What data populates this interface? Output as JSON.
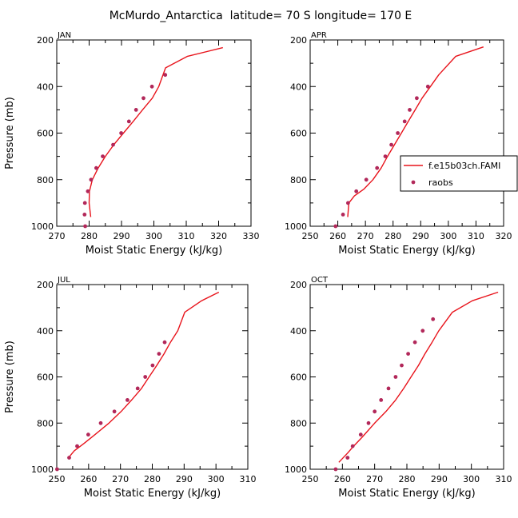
{
  "figure_title": "McMurdo_Antarctica  latitude= 70 S longitude= 170 E",
  "legend": {
    "model_label": "f.e15b03ch.FAMI",
    "obs_label": "raobs",
    "placement": "right, between APR and OCT panels"
  },
  "colors": {
    "model_line": "#e8141c",
    "obs_marker": "#b2285a",
    "axis": "#000000"
  },
  "chart_data": [
    {
      "type": "line",
      "panel": "JAN",
      "xlabel": "Moist Static Energy (kJ/kg)",
      "ylabel": "Pressure (mb)",
      "xlim": [
        270,
        330
      ],
      "ylim": [
        1000,
        200
      ],
      "xticks": [
        270,
        280,
        290,
        300,
        310,
        320,
        330
      ],
      "yticks": [
        200,
        400,
        600,
        800,
        1000
      ],
      "series": [
        {
          "name": "f.e15b03ch.FAMI",
          "kind": "line",
          "x": [
            280.5,
            280.0,
            280.1,
            281.0,
            282.8,
            285.0,
            287.6,
            290.6,
            293.6,
            296.5,
            299.5,
            301.5,
            303.6,
            310.4,
            321.3
          ],
          "y": [
            960,
            900,
            850,
            800,
            750,
            700,
            650,
            600,
            550,
            500,
            450,
            400,
            320,
            270,
            233
          ]
        },
        {
          "name": "raobs",
          "kind": "scatter",
          "x": [
            278.8,
            278.6,
            278.7,
            279.6,
            280.6,
            282.2,
            284.2,
            287.4,
            289.9,
            292.3,
            294.5,
            296.8,
            299.4,
            303.5
          ],
          "y": [
            1000,
            950,
            900,
            850,
            800,
            750,
            700,
            650,
            600,
            550,
            500,
            450,
            400,
            350
          ]
        }
      ]
    },
    {
      "type": "line",
      "panel": "APR",
      "xlabel": "Moist Static Energy (kJ/kg)",
      "ylabel": "Pressure (mb)",
      "xlim": [
        250,
        320
      ],
      "ylim": [
        1000,
        200
      ],
      "xticks": [
        250,
        260,
        270,
        280,
        290,
        300,
        310,
        320
      ],
      "yticks": [
        200,
        400,
        600,
        800,
        1000
      ],
      "series": [
        {
          "name": "f.e15b03ch.FAMI",
          "kind": "line",
          "x": [
            263.6,
            264.0,
            266.0,
            269.5,
            272.7,
            275.7,
            278.0,
            280.5,
            283.0,
            285.5,
            288.0,
            290.5,
            293.5,
            296.5,
            302.7,
            312.7
          ],
          "y": [
            960,
            900,
            870,
            840,
            800,
            750,
            700,
            650,
            600,
            550,
            500,
            450,
            400,
            350,
            270,
            230
          ]
        },
        {
          "name": "raobs",
          "kind": "scatter",
          "x": [
            259.2,
            261.9,
            263.7,
            266.7,
            270.3,
            274.2,
            277.2,
            279.4,
            281.7,
            284.2,
            286.0,
            288.6,
            292.6
          ],
          "y": [
            1000,
            950,
            900,
            850,
            800,
            750,
            700,
            650,
            600,
            550,
            500,
            450,
            400
          ]
        }
      ]
    },
    {
      "type": "line",
      "panel": "JUL",
      "xlabel": "Moist Static Energy (kJ/kg)",
      "ylabel": "Pressure (mb)",
      "xlim": [
        250,
        310
      ],
      "ylim": [
        1000,
        200
      ],
      "xticks": [
        250,
        260,
        270,
        280,
        290,
        300,
        310
      ],
      "yticks": [
        200,
        400,
        600,
        800,
        1000
      ],
      "series": [
        {
          "name": "f.e15b03ch.FAMI",
          "kind": "line",
          "x": [
            253.7,
            255.5,
            258.4,
            262.0,
            266.4,
            270.2,
            273.5,
            276.6,
            279.0,
            281.4,
            283.7,
            285.7,
            288.0,
            290.2,
            295.5,
            300.9
          ],
          "y": [
            950,
            920,
            890,
            850,
            800,
            750,
            700,
            650,
            600,
            550,
            500,
            450,
            400,
            320,
            270,
            233
          ]
        },
        {
          "name": "raobs",
          "kind": "scatter",
          "x": [
            250.1,
            253.9,
            256.4,
            259.9,
            263.8,
            268.1,
            272.2,
            275.4,
            277.8,
            280.1,
            282.1,
            283.9
          ],
          "y": [
            1000,
            950,
            900,
            850,
            800,
            750,
            700,
            650,
            600,
            550,
            500,
            450
          ]
        }
      ]
    },
    {
      "type": "line",
      "panel": "OCT",
      "xlabel": "Moist Static Energy (kJ/kg)",
      "ylabel": "Pressure (mb)",
      "xlim": [
        250,
        310
      ],
      "ylim": [
        1000,
        200
      ],
      "xticks": [
        250,
        260,
        270,
        280,
        290,
        300,
        310
      ],
      "yticks": [
        200,
        400,
        600,
        800,
        1000
      ],
      "series": [
        {
          "name": "f.e15b03ch.FAMI",
          "kind": "line",
          "x": [
            258.9,
            261.6,
            263.5,
            266.2,
            270.0,
            273.5,
            276.5,
            279.0,
            281.3,
            283.6,
            285.6,
            287.8,
            289.9,
            294.1,
            300.3,
            308.3
          ],
          "y": [
            970,
            930,
            900,
            860,
            800,
            750,
            700,
            650,
            600,
            550,
            500,
            450,
            400,
            320,
            270,
            233
          ]
        },
        {
          "name": "raobs",
          "kind": "scatter",
          "x": [
            257.9,
            261.6,
            263.2,
            265.7,
            268.1,
            270.0,
            272.0,
            274.3,
            276.5,
            278.4,
            280.4,
            282.5,
            284.9,
            288.1
          ],
          "y": [
            1000,
            950,
            900,
            850,
            800,
            750,
            700,
            650,
            600,
            550,
            500,
            450,
            400,
            350
          ]
        }
      ]
    }
  ]
}
